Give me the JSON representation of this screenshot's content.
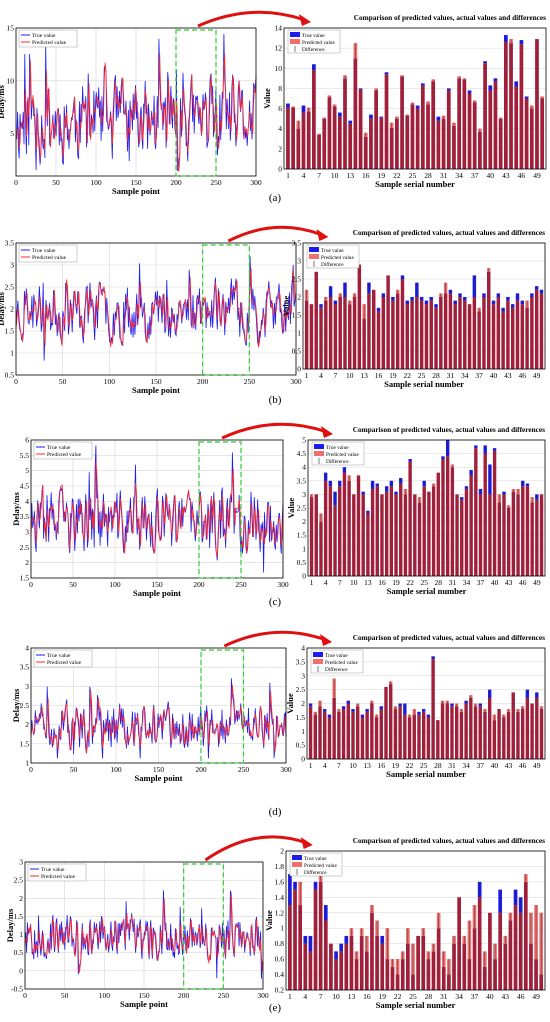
{
  "chart_data": [
    {
      "type": "line",
      "panel_label": "(a)",
      "xlabel": "Sample point",
      "ylabel": "Delay/ms",
      "xlim": [
        0,
        300
      ],
      "ylim": [
        1,
        15
      ],
      "xticks": [
        0,
        50,
        100,
        150,
        200,
        250,
        300
      ],
      "yticks": [
        5,
        10,
        15
      ],
      "legend": [
        "True value",
        "Predicted value"
      ],
      "base": 6.2,
      "amp": 2.4,
      "n": 300,
      "seed": 11,
      "highlight_range": [
        200,
        250
      ],
      "bar_chart": {
        "type": "bar",
        "title": "Comparison of predicted values, actual values and differences",
        "xlabel": "Sample serial number",
        "ylabel": "Value",
        "ylim": [
          0,
          14
        ],
        "yticks": [
          0,
          2,
          4,
          6,
          8,
          10,
          12,
          14
        ],
        "categories": [
          "1",
          "4",
          "7",
          "10",
          "13",
          "16",
          "19",
          "22",
          "25",
          "28",
          "31",
          "34",
          "37",
          "40",
          "43",
          "46",
          "49"
        ],
        "legend": [
          "True value",
          "Predicted value",
          "Difference"
        ],
        "true_values": [
          6.5,
          6.1,
          4.0,
          6.3,
          5.7,
          10.4,
          3.4,
          5.0,
          7.1,
          6.2,
          5.6,
          9.0,
          4.8,
          11.0,
          8.0,
          3.2,
          5.4,
          7.8,
          5.2,
          9.6,
          4.1,
          5.0,
          9.2,
          5.3,
          6.4,
          6.3,
          8.5,
          6.4,
          8.7,
          5.2,
          5.0,
          8.0,
          4.3,
          9.0,
          8.9,
          7.8,
          6.6,
          3.7,
          10.7,
          8.3,
          9.0,
          5.0,
          13.3,
          12.5,
          8.7,
          12.8,
          7.2,
          6.0,
          12.9,
          7.0
        ],
        "predicted_values": [
          6.1,
          6.2,
          4.8,
          5.6,
          6.1,
          9.8,
          3.5,
          5.1,
          7.3,
          6.4,
          5.2,
          9.3,
          4.5,
          12.5,
          7.9,
          3.6,
          5.0,
          8.0,
          5.1,
          9.4,
          4.6,
          5.2,
          9.3,
          5.4,
          6.6,
          6.0,
          8.3,
          6.7,
          8.9,
          4.8,
          5.3,
          7.8,
          4.6,
          9.2,
          9.0,
          7.5,
          6.8,
          4.0,
          10.5,
          7.8,
          8.7,
          5.1,
          12.6,
          12.9,
          8.2,
          12.4,
          7.0,
          6.3,
          12.9,
          7.2
        ]
      }
    },
    {
      "type": "line",
      "panel_label": "(b)",
      "xlabel": "Sample point",
      "ylabel": "Delay/ms",
      "xlim": [
        0,
        300
      ],
      "ylim": [
        0.5,
        3.5
      ],
      "xticks": [
        0,
        50,
        100,
        150,
        200,
        250,
        300
      ],
      "yticks": [
        0.5,
        1,
        1.5,
        2,
        2.5,
        3,
        3.5
      ],
      "legend": [
        "True value",
        "Predicted value"
      ],
      "base": 1.95,
      "amp": 0.42,
      "n": 300,
      "seed": 23,
      "highlight_range": [
        200,
        250
      ],
      "bar_chart": {
        "type": "bar",
        "title": "Comparison of predicted values, actual values and differences",
        "xlabel": "Sample serial number",
        "ylabel": "Value",
        "ylim": [
          0,
          3.5
        ],
        "yticks": [
          0,
          0.5,
          1,
          1.5,
          2,
          2.5,
          3,
          3.5
        ],
        "categories": [
          "1",
          "4",
          "7",
          "10",
          "13",
          "16",
          "19",
          "22",
          "25",
          "28",
          "31",
          "34",
          "37",
          "40",
          "43",
          "46",
          "49"
        ],
        "legend": [
          "True value",
          "Predicted value",
          "Difference"
        ],
        "true_values": [
          1.9,
          1.8,
          2.7,
          1.8,
          1.9,
          2.3,
          1.9,
          2.0,
          2.4,
          1.8,
          2.0,
          2.9,
          1.4,
          2.4,
          2.2,
          1.7,
          2.1,
          2.6,
          2.0,
          2.1,
          2.6,
          1.9,
          2.0,
          2.4,
          2.0,
          1.9,
          2.0,
          1.8,
          2.0,
          2.1,
          2.2,
          1.9,
          2.1,
          2.0,
          1.8,
          2.6,
          1.6,
          2.1,
          2.7,
          1.9,
          2.1,
          1.7,
          2.0,
          1.8,
          2.1,
          1.9,
          1.7,
          2.1,
          2.3,
          2.2
        ],
        "predicted_values": [
          2.2,
          1.8,
          2.7,
          1.7,
          2.0,
          2.0,
          1.8,
          2.1,
          2.0,
          1.9,
          2.1,
          2.9,
          1.8,
          2.1,
          2.2,
          1.6,
          2.0,
          2.6,
          1.9,
          2.2,
          2.5,
          1.8,
          1.9,
          2.0,
          1.9,
          1.8,
          1.9,
          1.7,
          2.1,
          2.4,
          2.1,
          1.8,
          2.0,
          1.9,
          1.8,
          2.0,
          1.7,
          2.0,
          2.8,
          1.8,
          2.0,
          1.6,
          1.9,
          1.7,
          1.9,
          1.8,
          1.9,
          2.0,
          2.2,
          2.1
        ]
      }
    },
    {
      "type": "line",
      "panel_label": "(c)",
      "xlabel": "Sample point",
      "ylabel": "Delay/ms",
      "xlim": [
        0,
        300
      ],
      "ylim": [
        1.5,
        6
      ],
      "xticks": [
        0,
        50,
        100,
        150,
        200,
        250,
        300
      ],
      "yticks": [
        1.5,
        2,
        2.5,
        3,
        3.5,
        4,
        4.5,
        5,
        5.5,
        6
      ],
      "legend": [
        "True value",
        "Predicted value"
      ],
      "base": 3.3,
      "amp": 0.65,
      "n": 300,
      "seed": 37,
      "highlight_range": [
        200,
        250
      ],
      "bar_chart": {
        "type": "bar",
        "title": "Comparison of predicted values, actual values and differences",
        "xlabel": "Sample serial number",
        "ylabel": "Value",
        "ylim": [
          0,
          5
        ],
        "yticks": [
          0,
          0.5,
          1,
          1.5,
          2,
          2.5,
          3,
          3.5,
          4,
          4.5,
          5
        ],
        "categories": [
          "1",
          "4",
          "7",
          "10",
          "13",
          "16",
          "19",
          "22",
          "25",
          "28",
          "31",
          "34",
          "37",
          "40",
          "43",
          "46",
          "49"
        ],
        "legend": [
          "True value",
          "Predicted value",
          "Difference"
        ],
        "true_values": [
          2.9,
          3.0,
          2.0,
          3.8,
          3.5,
          3.1,
          3.5,
          4.0,
          3.5,
          3.0,
          3.7,
          3.1,
          2.4,
          3.5,
          3.4,
          3.0,
          3.3,
          3.5,
          3.1,
          3.6,
          3.0,
          4.3,
          3.0,
          2.7,
          3.5,
          3.1,
          3.3,
          3.8,
          4.4,
          5.0,
          4.0,
          3.0,
          2.9,
          3.3,
          3.9,
          4.8,
          3.2,
          4.8,
          4.1,
          4.7,
          2.7,
          3.1,
          2.5,
          3.1,
          3.0,
          3.5,
          3.4,
          2.7,
          3.0,
          3.0
        ],
        "predicted_values": [
          3.0,
          3.0,
          2.3,
          3.5,
          3.3,
          2.6,
          3.3,
          3.8,
          3.7,
          3.0,
          3.7,
          3.0,
          2.3,
          3.2,
          3.3,
          3.0,
          3.1,
          3.3,
          3.0,
          3.4,
          3.2,
          4.2,
          3.0,
          2.9,
          3.3,
          3.1,
          3.4,
          3.8,
          4.3,
          4.4,
          4.1,
          3.0,
          2.8,
          3.2,
          3.7,
          4.7,
          3.0,
          4.5,
          3.0,
          4.6,
          3.0,
          3.0,
          2.6,
          3.2,
          3.2,
          3.3,
          3.3,
          2.9,
          2.8,
          3.0
        ]
      }
    },
    {
      "type": "line",
      "panel_label": "(d)",
      "xlabel": "Sample point",
      "ylabel": "Delay/ms",
      "xlim": [
        0,
        300
      ],
      "ylim": [
        1,
        4
      ],
      "xticks": [
        0,
        50,
        100,
        150,
        200,
        250,
        300
      ],
      "yticks": [
        1,
        1.5,
        2,
        2.5,
        3,
        3.5,
        4
      ],
      "legend": [
        "True value",
        "Predicted value"
      ],
      "base": 1.95,
      "amp": 0.38,
      "n": 300,
      "seed": 51,
      "highlight_range": [
        200,
        250
      ],
      "bar_chart": {
        "type": "bar",
        "title": "Comparison of predicted values, actual values and differences",
        "xlabel": "Sample serial number",
        "ylabel": "Value",
        "ylim": [
          0,
          4
        ],
        "yticks": [
          0,
          0.5,
          1,
          1.5,
          2,
          2.5,
          3,
          3.5,
          4
        ],
        "categories": [
          "1",
          "4",
          "7",
          "10",
          "13",
          "16",
          "19",
          "22",
          "25",
          "28",
          "31",
          "34",
          "37",
          "40",
          "43",
          "46",
          "49"
        ],
        "legend": [
          "True value",
          "Predicted value",
          "Difference"
        ],
        "true_values": [
          2.0,
          1.6,
          1.9,
          1.8,
          1.6,
          2.2,
          1.7,
          1.9,
          2.1,
          1.8,
          1.9,
          1.6,
          1.8,
          2.0,
          1.5,
          1.9,
          2.6,
          2.7,
          1.8,
          2.0,
          2.0,
          1.5,
          1.6,
          1.7,
          1.8,
          1.6,
          3.7,
          1.4,
          2.0,
          2.0,
          2.0,
          1.9,
          1.7,
          2.1,
          2.2,
          1.9,
          2.0,
          1.7,
          2.5,
          1.4,
          1.8,
          1.5,
          1.7,
          2.4,
          1.7,
          1.8,
          2.5,
          2.0,
          2.4,
          1.8
        ],
        "predicted_values": [
          1.9,
          1.7,
          2.1,
          1.7,
          1.5,
          2.9,
          1.8,
          1.8,
          2.0,
          1.7,
          2.0,
          1.5,
          1.7,
          2.1,
          1.6,
          1.8,
          2.6,
          2.8,
          1.9,
          1.9,
          1.6,
          1.6,
          1.8,
          1.6,
          1.7,
          1.5,
          3.6,
          1.4,
          2.1,
          2.1,
          1.9,
          2.0,
          1.8,
          2.0,
          2.3,
          2.0,
          1.9,
          1.8,
          2.2,
          1.6,
          1.8,
          1.6,
          1.8,
          2.4,
          1.8,
          1.9,
          2.2,
          2.0,
          2.2,
          1.9
        ]
      }
    },
    {
      "type": "line",
      "panel_label": "(e)",
      "xlabel": "Sample point",
      "ylabel": "Delay/ms",
      "xlim": [
        0,
        300
      ],
      "ylim": [
        -0.5,
        3
      ],
      "xticks": [
        0,
        50,
        100,
        150,
        200,
        250,
        300
      ],
      "yticks": [
        -0.5,
        0,
        0.5,
        1,
        1.5,
        2,
        2.5,
        3
      ],
      "legend": [
        "True value",
        "Predicted value"
      ],
      "base": 0.95,
      "amp": 0.38,
      "n": 300,
      "seed": 67,
      "highlight_range": [
        200,
        250
      ],
      "bar_chart": {
        "type": "bar",
        "title": "Comparison of predicted values, actual values and differences",
        "xlabel": "Sample serial number",
        "ylabel": "Value",
        "ylim": [
          0.2,
          2
        ],
        "yticks": [
          0.2,
          0.4,
          0.6,
          0.8,
          1,
          1.2,
          1.4,
          1.6,
          1.8,
          2
        ],
        "categories": [
          "1",
          "4",
          "7",
          "10",
          "13",
          "16",
          "19",
          "22",
          "25",
          "28",
          "31",
          "34",
          "37",
          "40",
          "43",
          "46",
          "49"
        ],
        "legend": [
          "True value",
          "Predicted value",
          "Difference"
        ],
        "true_values": [
          1.7,
          1.6,
          1.3,
          0.9,
          0.9,
          1.6,
          1.6,
          1.3,
          0.8,
          0.7,
          0.8,
          0.9,
          0.9,
          0.6,
          0.9,
          0.7,
          1.2,
          0.9,
          0.9,
          0.6,
          0.5,
          0.4,
          0.6,
          0.8,
          0.4,
          0.9,
          0.9,
          0.6,
          0.7,
          1.0,
          0.5,
          0.4,
          0.8,
          1.4,
          0.8,
          0.6,
          1.0,
          1.6,
          0.5,
          1.2,
          0.6,
          1.5,
          0.8,
          1.1,
          1.5,
          1.4,
          1.6,
          0.8,
          0.6,
          0.4
        ],
        "predicted_values": [
          1.3,
          1.5,
          1.6,
          0.8,
          0.7,
          1.5,
          1.8,
          1.1,
          0.8,
          0.6,
          0.7,
          0.8,
          1.0,
          0.7,
          1.0,
          0.9,
          1.3,
          1.1,
          0.8,
          1.0,
          0.6,
          0.6,
          0.7,
          1.0,
          0.8,
          0.9,
          1.0,
          0.7,
          0.8,
          1.2,
          0.7,
          0.6,
          0.9,
          1.4,
          0.9,
          1.1,
          1.3,
          1.4,
          0.7,
          1.2,
          0.8,
          1.2,
          0.9,
          1.2,
          1.3,
          1.2,
          1.7,
          1.2,
          1.3,
          1.2
        ]
      }
    }
  ],
  "colors": {
    "true_value": "#1c1cf0",
    "predicted_value": "#ff2a2a",
    "overlap_bar": "#a01f3a",
    "predicted_bar": "#f07070",
    "highlight_box": "#33cc33",
    "arrow": "#e01010",
    "grid": "#d6d6d6"
  }
}
